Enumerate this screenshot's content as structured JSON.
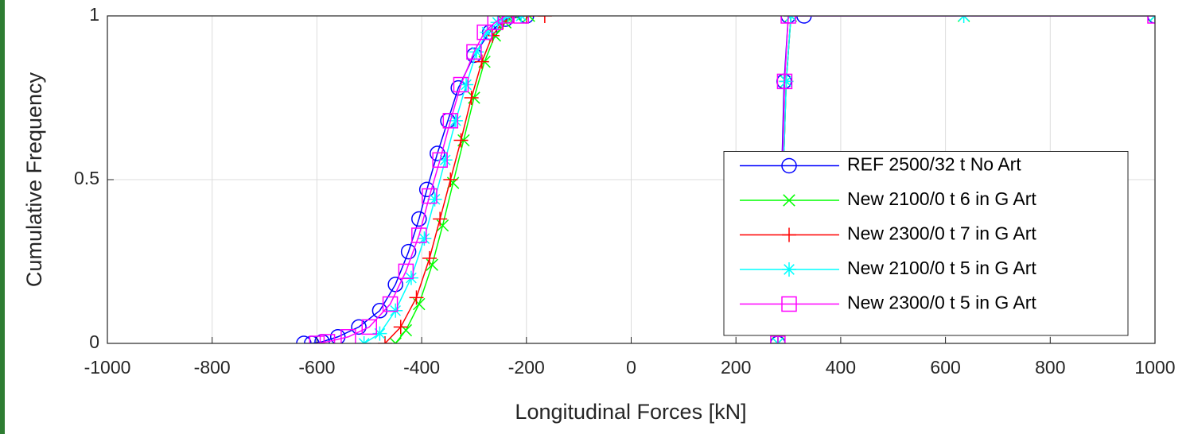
{
  "chart_data": {
    "type": "line",
    "xlabel": "Longitudinal Forces [kN]",
    "ylabel": "Cumulative Frequency",
    "xlim": [
      -1000,
      1000
    ],
    "ylim": [
      0,
      1
    ],
    "xticks": [
      -1000,
      -800,
      -600,
      -400,
      -200,
      0,
      200,
      400,
      600,
      800,
      1000
    ],
    "yticks": [
      0,
      0.5,
      1
    ],
    "grid": true,
    "legend_position": "lower right",
    "series": [
      {
        "name": "REF 2500/32 t No Art",
        "color": "#0000ff",
        "marker": "o",
        "x": [
          -625,
          -610,
          -590,
          -560,
          -520,
          -480,
          -450,
          -425,
          -405,
          -390,
          -370,
          -350,
          -330,
          -300,
          -270,
          -240,
          -200,
          null,
          280,
          283,
          287,
          292,
          300,
          330,
          1000
        ],
        "y": [
          0,
          0,
          0.005,
          0.02,
          0.05,
          0.1,
          0.18,
          0.28,
          0.38,
          0.47,
          0.58,
          0.68,
          0.78,
          0.88,
          0.95,
          0.99,
          1,
          null,
          0,
          0.2,
          0.5,
          0.8,
          1,
          1,
          1
        ]
      },
      {
        "name": "New 2100/0 t 6 in G Art",
        "color": "#00ff00",
        "marker": "x",
        "x": [
          -450,
          -430,
          -405,
          -380,
          -360,
          -340,
          -320,
          -300,
          -280,
          -260,
          -240,
          -220,
          -195,
          null,
          280,
          285,
          290,
          296,
          305,
          635,
          1000
        ],
        "y": [
          0,
          0.04,
          0.12,
          0.24,
          0.36,
          0.49,
          0.62,
          0.75,
          0.86,
          0.94,
          0.98,
          1,
          1,
          null,
          0,
          0.2,
          0.5,
          0.8,
          1,
          1,
          1
        ]
      },
      {
        "name": "New 2300/0 t 7 in G Art",
        "color": "#ff0000",
        "marker": "+",
        "x": [
          -470,
          -440,
          -410,
          -385,
          -365,
          -345,
          -325,
          -305,
          -285,
          -265,
          -245,
          -225,
          -200,
          -165,
          null,
          280,
          285,
          290,
          296,
          305,
          1000
        ],
        "y": [
          0,
          0.05,
          0.14,
          0.26,
          0.38,
          0.5,
          0.62,
          0.75,
          0.86,
          0.94,
          0.98,
          1,
          1,
          1,
          null,
          0,
          0.2,
          0.5,
          0.8,
          1,
          1
        ]
      },
      {
        "name": "New 2100/0 t 5 in G Art",
        "color": "#00ffff",
        "marker": "*",
        "x": [
          -510,
          -480,
          -450,
          -420,
          -395,
          -375,
          -355,
          -335,
          -315,
          -295,
          -275,
          -255,
          -235,
          -210,
          null,
          280,
          285,
          290,
          296,
          305,
          635,
          1000
        ],
        "y": [
          0,
          0.03,
          0.1,
          0.2,
          0.32,
          0.44,
          0.56,
          0.68,
          0.79,
          0.89,
          0.95,
          0.98,
          1,
          1,
          null,
          0,
          0.2,
          0.5,
          0.8,
          1,
          1,
          1
        ]
      },
      {
        "name": "New 2300/0 t 5 in G Art",
        "color": "#ff00ff",
        "marker": "s",
        "x": [
          -600,
          -580,
          -540,
          -500,
          -460,
          -430,
          -405,
          -385,
          -365,
          -345,
          -325,
          -300,
          -280,
          -260,
          -240,
          -210,
          null,
          280,
          284,
          288,
          293,
          300,
          1000
        ],
        "y": [
          0,
          0.005,
          0.02,
          0.05,
          0.12,
          0.22,
          0.33,
          0.45,
          0.56,
          0.68,
          0.79,
          0.89,
          0.95,
          0.98,
          1,
          1,
          null,
          0,
          0.2,
          0.5,
          0.8,
          1,
          1
        ]
      }
    ]
  }
}
